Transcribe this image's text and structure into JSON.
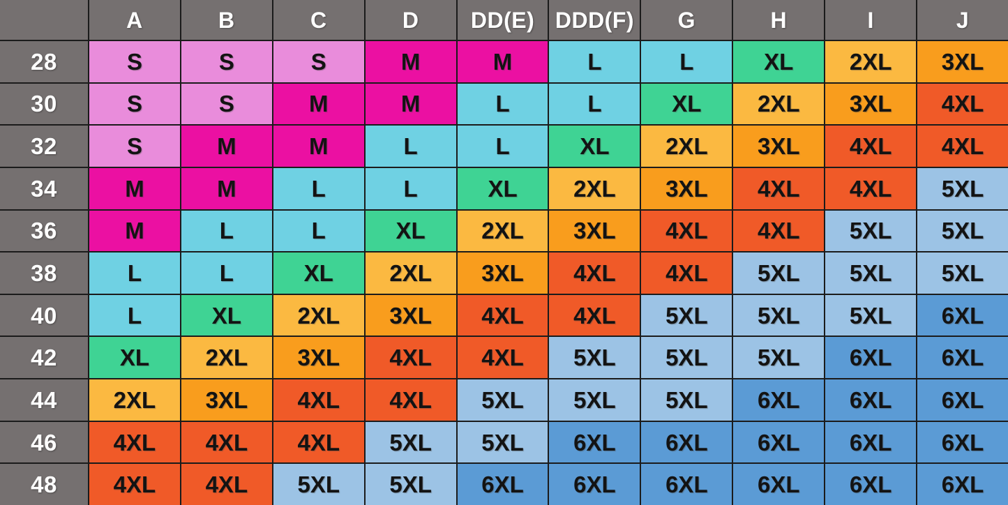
{
  "chart_data": {
    "type": "table",
    "corner_label": "",
    "columns": [
      "A",
      "B",
      "C",
      "D",
      "DD(E)",
      "DDD(F)",
      "G",
      "H",
      "I",
      "J"
    ],
    "rows": [
      {
        "band": "28",
        "cells": [
          "S",
          "S",
          "S",
          "M",
          "M",
          "L",
          "L",
          "XL",
          "2XL",
          "3XL"
        ]
      },
      {
        "band": "30",
        "cells": [
          "S",
          "S",
          "M",
          "M",
          "L",
          "L",
          "XL",
          "2XL",
          "3XL",
          "4XL"
        ]
      },
      {
        "band": "32",
        "cells": [
          "S",
          "M",
          "M",
          "L",
          "L",
          "XL",
          "2XL",
          "3XL",
          "4XL",
          "4XL"
        ]
      },
      {
        "band": "34",
        "cells": [
          "M",
          "M",
          "L",
          "L",
          "XL",
          "2XL",
          "3XL",
          "4XL",
          "4XL",
          "5XL"
        ]
      },
      {
        "band": "36",
        "cells": [
          "M",
          "L",
          "L",
          "XL",
          "2XL",
          "3XL",
          "4XL",
          "4XL",
          "5XL",
          "5XL"
        ]
      },
      {
        "band": "38",
        "cells": [
          "L",
          "L",
          "XL",
          "2XL",
          "3XL",
          "4XL",
          "4XL",
          "5XL",
          "5XL",
          "5XL"
        ]
      },
      {
        "band": "40",
        "cells": [
          "L",
          "XL",
          "2XL",
          "3XL",
          "4XL",
          "4XL",
          "5XL",
          "5XL",
          "5XL",
          "6XL"
        ]
      },
      {
        "band": "42",
        "cells": [
          "XL",
          "2XL",
          "3XL",
          "4XL",
          "4XL",
          "5XL",
          "5XL",
          "5XL",
          "6XL",
          "6XL"
        ]
      },
      {
        "band": "44",
        "cells": [
          "2XL",
          "3XL",
          "4XL",
          "4XL",
          "5XL",
          "5XL",
          "5XL",
          "6XL",
          "6XL",
          "6XL"
        ]
      },
      {
        "band": "46",
        "cells": [
          "4XL",
          "4XL",
          "4XL",
          "5XL",
          "5XL",
          "6XL",
          "6XL",
          "6XL",
          "6XL",
          "6XL"
        ]
      },
      {
        "band": "48",
        "cells": [
          "4XL",
          "4XL",
          "5XL",
          "5XL",
          "6XL",
          "6XL",
          "6XL",
          "6XL",
          "6XL",
          "6XL"
        ]
      }
    ],
    "size_colors": {
      "S": "#E98CDB",
      "M": "#EB10A2",
      "L": "#6FD1E3",
      "XL": "#3FD394",
      "2XL": "#FBB941",
      "3XL": "#F99D1D",
      "4XL": "#F05A28",
      "5XL": "#9CC3E5",
      "6XL": "#5B9BD5"
    },
    "header_bg": "#757070",
    "border_color": "#1B1B1B",
    "header_text_color": "#FFFFFF",
    "cell_text_color": "#131313"
  }
}
